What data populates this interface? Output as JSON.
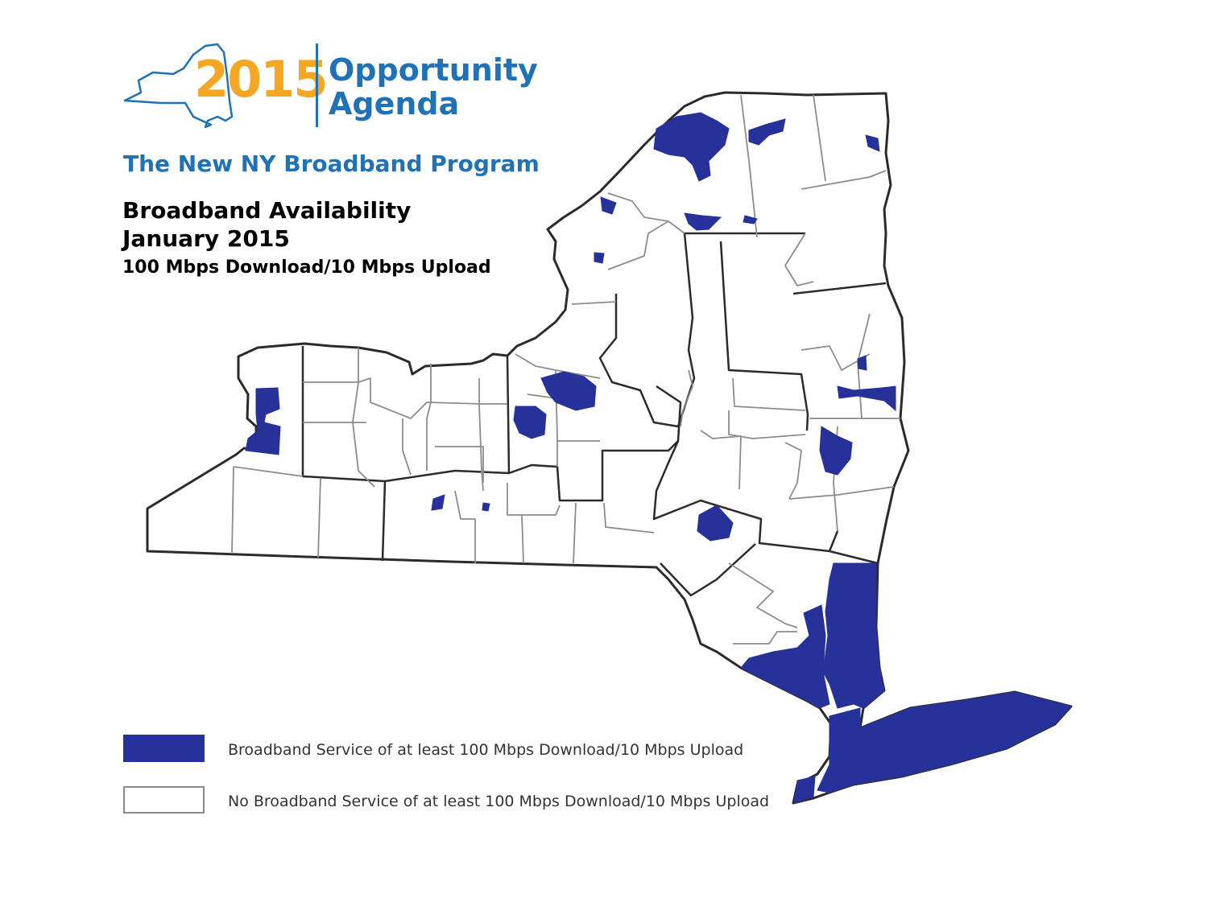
{
  "logo": {
    "year": "2015",
    "line1": "Opportunity",
    "line2": "Agenda",
    "year_color": "#f5a623",
    "text_color": "#1f72b8"
  },
  "program_title": "The New NY Broadband Program",
  "title": {
    "line1": "Broadband Availability",
    "line2": "January 2015"
  },
  "subtitle": "100 Mbps Download/10 Mbps Upload",
  "legend": {
    "covered_label": "Broadband Service of at least 100 Mbps Download/10 Mbps Upload",
    "not_covered_label": "No Broadband Service of at least 100 Mbps Download/10 Mbps Upload",
    "covered_color": "#27319a",
    "not_covered_color": "#ffffff"
  },
  "map_colors": {
    "state_outline": "#2b2b2b",
    "region_border": "#2b2b2b",
    "county_border": "#8c8c8c"
  }
}
